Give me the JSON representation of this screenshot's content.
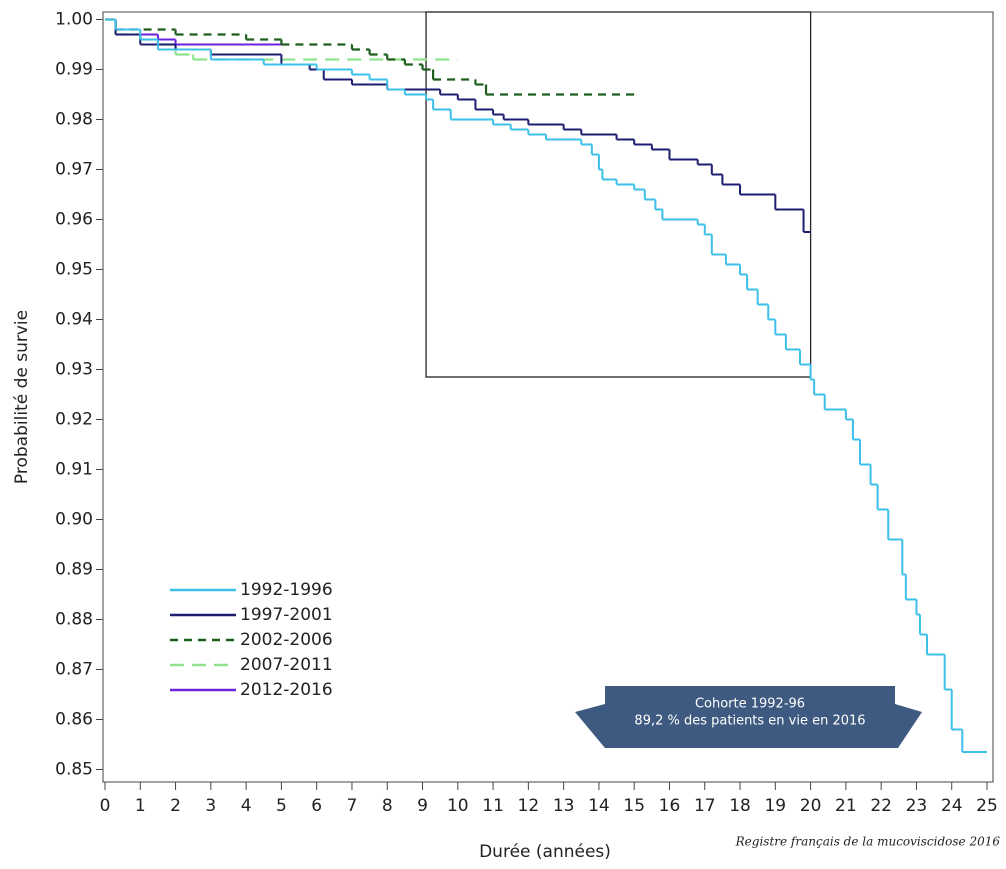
{
  "chart_data": {
    "type": "line",
    "step": "post",
    "ylabel": "Probabilité de survie",
    "xlabel": "Durée (années)",
    "source": "Registre français de la mucoviscidose 2016",
    "annotation": {
      "lines": [
        "Cohorte 1992-96",
        "89,2 % des patients en vie en 2016"
      ]
    },
    "zoom_box": {
      "x": [
        9.1,
        20
      ],
      "y": [
        0.9285,
        1.0015
      ]
    },
    "xlim": [
      0,
      25
    ],
    "xticks": [
      0,
      1,
      2,
      3,
      4,
      5,
      6,
      7,
      8,
      9,
      10,
      11,
      12,
      13,
      14,
      15,
      16,
      17,
      18,
      19,
      20,
      21,
      22,
      23,
      24,
      25
    ],
    "ylim": [
      0.8475,
      1.0015
    ],
    "yticks": [
      {
        "value": 1,
        "label": "1.00"
      },
      0.99,
      0.98,
      0.97,
      0.96,
      0.95,
      0.94,
      0.93,
      0.92,
      0.91,
      {
        "value": 0.9,
        "label": "0.90"
      },
      0.89,
      0.88,
      0.87,
      0.86,
      0.85
    ],
    "series": [
      {
        "name": "1992-1996",
        "color": "#3cbfe9",
        "dash": "none",
        "x": [
          0,
          0.3,
          1,
          1.5,
          3,
          4.5,
          6,
          7,
          7.5,
          8,
          8.5,
          9.1,
          9.3,
          9.8,
          11,
          11.5,
          12,
          12.5,
          13.5,
          13.8,
          14,
          14.1,
          14.5,
          15,
          15.3,
          15.6,
          15.8,
          16.8,
          17,
          17.2,
          17.6,
          18,
          18.2,
          18.5,
          18.8,
          19,
          19.3,
          19.7,
          20,
          20.1,
          20.4,
          21,
          21.2,
          21.4,
          21.7,
          21.9,
          22.2,
          22.6,
          22.7,
          23,
          23.1,
          23.3,
          23.8,
          24,
          24.3,
          25
        ],
        "values": [
          1,
          0.998,
          0.996,
          0.994,
          0.992,
          0.991,
          0.99,
          0.989,
          0.988,
          0.986,
          0.985,
          0.984,
          0.982,
          0.98,
          0.979,
          0.978,
          0.977,
          0.976,
          0.975,
          0.973,
          0.97,
          0.968,
          0.967,
          0.966,
          0.964,
          0.962,
          0.96,
          0.959,
          0.957,
          0.953,
          0.951,
          0.949,
          0.946,
          0.943,
          0.94,
          0.937,
          0.934,
          0.931,
          0.928,
          0.925,
          0.922,
          0.92,
          0.916,
          0.911,
          0.907,
          0.902,
          0.896,
          0.889,
          0.884,
          0.881,
          0.877,
          0.873,
          0.866,
          0.858,
          0.8535,
          0.8535
        ]
      },
      {
        "name": "1997-2001",
        "color": "#1c1c70",
        "dash": "none",
        "x": [
          0,
          0.3,
          1,
          2,
          3,
          5,
          5.8,
          6.2,
          7,
          8,
          9.5,
          10,
          10.5,
          11,
          11.3,
          12,
          13,
          13.5,
          14.5,
          15,
          15.5,
          16,
          16.8,
          17.2,
          17.5,
          18,
          19,
          19.8,
          20
        ],
        "values": [
          1,
          0.997,
          0.995,
          0.994,
          0.993,
          0.991,
          0.99,
          0.988,
          0.987,
          0.986,
          0.985,
          0.984,
          0.982,
          0.981,
          0.98,
          0.979,
          0.978,
          0.977,
          0.976,
          0.975,
          0.974,
          0.972,
          0.971,
          0.969,
          0.967,
          0.965,
          0.962,
          0.9575,
          0.9575
        ]
      },
      {
        "name": "2002-2006",
        "color": "#1d5e1d",
        "dash": "8 6",
        "x": [
          0,
          0.3,
          2,
          4,
          5,
          7,
          7.5,
          8,
          8.5,
          9,
          9.3,
          10.5,
          10.8,
          15
        ],
        "values": [
          1,
          0.998,
          0.997,
          0.996,
          0.995,
          0.994,
          0.993,
          0.992,
          0.991,
          0.99,
          0.988,
          0.987,
          0.985,
          0.985
        ]
      },
      {
        "name": "2007-2011",
        "color": "#8fe38f",
        "dash": "14 8",
        "x": [
          0,
          0.3,
          1,
          1.5,
          2,
          2.5,
          10
        ],
        "values": [
          1,
          0.997,
          0.996,
          0.995,
          0.993,
          0.992,
          0.992
        ]
      },
      {
        "name": "2012-2016",
        "color": "#6b22d8",
        "dash": "none",
        "x": [
          0,
          0.3,
          1.5,
          2,
          5
        ],
        "values": [
          1,
          0.997,
          0.996,
          0.995,
          0.995
        ]
      }
    ]
  }
}
